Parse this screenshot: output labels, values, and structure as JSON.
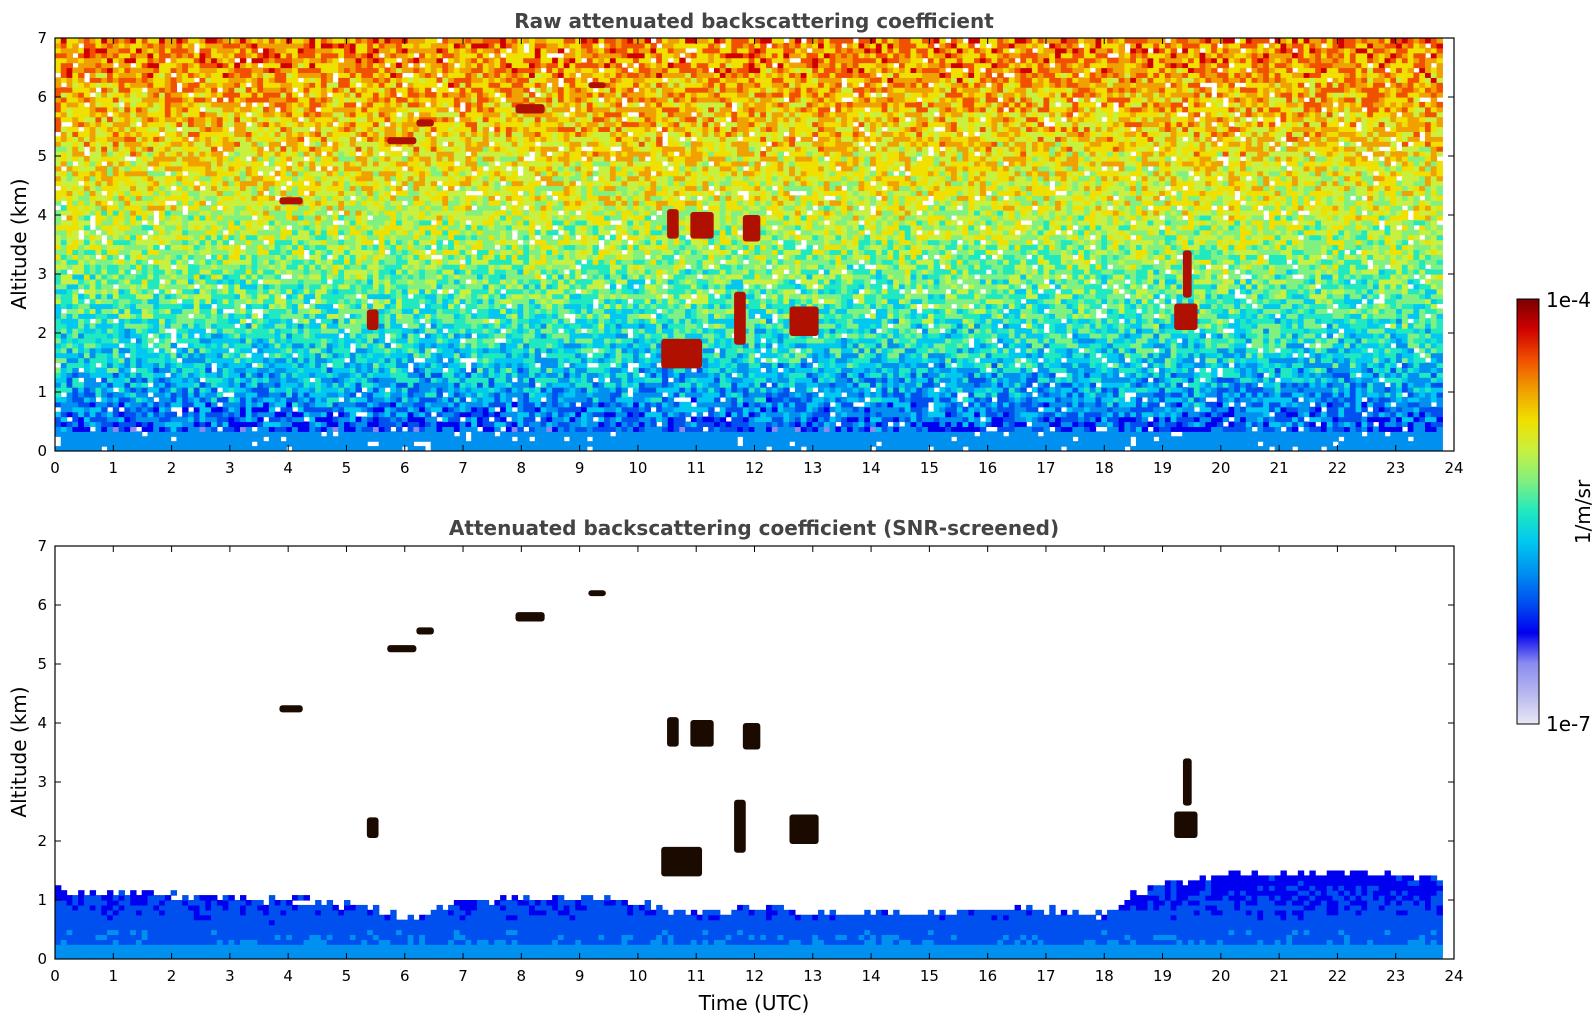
{
  "chart_data": [
    {
      "type": "heatmap",
      "title": "Raw attenuated backscattering coefficient",
      "xlabel": "",
      "ylabel": "Altitude (km)",
      "xlim": [
        0,
        24
      ],
      "ylim": [
        0,
        7
      ],
      "xticks": [
        "0",
        "1",
        "2",
        "3",
        "4",
        "5",
        "6",
        "7",
        "8",
        "9",
        "10",
        "11",
        "12",
        "13",
        "14",
        "15",
        "16",
        "17",
        "18",
        "19",
        "20",
        "21",
        "22",
        "23",
        "24"
      ],
      "yticks": [
        "0",
        "1",
        "2",
        "3",
        "4",
        "5",
        "6",
        "7"
      ],
      "data_end_time": 23.8,
      "features": {
        "cloud_layers": [
          {
            "t": [
              3.85,
              4.25
            ],
            "alt": [
              4.18,
              4.3
            ]
          },
          {
            "t": [
              5.7,
              6.2
            ],
            "alt": [
              5.2,
              5.32
            ]
          },
          {
            "t": [
              6.2,
              6.5
            ],
            "alt": [
              5.5,
              5.62
            ]
          },
          {
            "t": [
              7.9,
              8.4
            ],
            "alt": [
              5.72,
              5.88
            ]
          },
          {
            "t": [
              9.15,
              9.45
            ],
            "alt": [
              6.15,
              6.25
            ]
          },
          {
            "t": [
              10.5,
              10.7
            ],
            "alt": [
              3.6,
              4.1
            ]
          },
          {
            "t": [
              10.9,
              11.3
            ],
            "alt": [
              3.6,
              4.05
            ]
          },
          {
            "t": [
              11.8,
              12.1
            ],
            "alt": [
              3.55,
              4.0
            ]
          },
          {
            "t": [
              12.6,
              13.1
            ],
            "alt": [
              1.95,
              2.45
            ]
          },
          {
            "t": [
              5.35,
              5.55
            ],
            "alt": [
              2.05,
              2.4
            ]
          },
          {
            "t": [
              10.4,
              11.1
            ],
            "alt": [
              1.4,
              1.9
            ]
          },
          {
            "t": [
              11.65,
              11.85
            ],
            "alt": [
              1.8,
              2.7
            ]
          },
          {
            "t": [
              19.2,
              19.6
            ],
            "alt": [
              2.05,
              2.5
            ]
          },
          {
            "t": [
              19.35,
              19.5
            ],
            "alt": [
              2.6,
              3.4
            ]
          }
        ]
      }
    },
    {
      "type": "heatmap",
      "title": "Attenuated backscattering coefficient (SNR-screened)",
      "xlabel": "Time (UTC)",
      "ylabel": "Altitude (km)",
      "xlim": [
        0,
        24
      ],
      "ylim": [
        0,
        7
      ],
      "xticks": [
        "0",
        "1",
        "2",
        "3",
        "4",
        "5",
        "6",
        "7",
        "8",
        "9",
        "10",
        "11",
        "12",
        "13",
        "14",
        "15",
        "16",
        "17",
        "18",
        "19",
        "20",
        "21",
        "22",
        "23",
        "24"
      ],
      "yticks": [
        "0",
        "1",
        "2",
        "3",
        "4",
        "5",
        "6",
        "7"
      ],
      "data_end_time": 23.8,
      "boundary_layer_top_km": [
        {
          "t": 0,
          "h": 1.15
        },
        {
          "t": 2,
          "h": 1.05
        },
        {
          "t": 4,
          "h": 0.95
        },
        {
          "t": 5.5,
          "h": 0.85
        },
        {
          "t": 6,
          "h": 0.6
        },
        {
          "t": 7,
          "h": 0.95
        },
        {
          "t": 9,
          "h": 1.0
        },
        {
          "t": 10,
          "h": 0.9
        },
        {
          "t": 11,
          "h": 0.75
        },
        {
          "t": 12,
          "h": 0.85
        },
        {
          "t": 13,
          "h": 0.75
        },
        {
          "t": 15,
          "h": 0.75
        },
        {
          "t": 17,
          "h": 0.8
        },
        {
          "t": 18,
          "h": 0.7
        },
        {
          "t": 18.5,
          "h": 1.1
        },
        {
          "t": 19.5,
          "h": 1.3
        },
        {
          "t": 20.5,
          "h": 1.45
        },
        {
          "t": 23.8,
          "h": 1.35
        }
      ]
    }
  ],
  "colorbar": {
    "label": "1/m/sr",
    "max_label": "1e-4",
    "min_label": "1e-7",
    "colors": [
      "#e8e8f6",
      "#b8b8f0",
      "#8a8af0",
      "#0000f0",
      "#0050f0",
      "#0090f0",
      "#00c8f0",
      "#20e8c0",
      "#80f080",
      "#c8f040",
      "#f0e000",
      "#f0a000",
      "#f05000",
      "#d00000",
      "#7a0000"
    ]
  }
}
